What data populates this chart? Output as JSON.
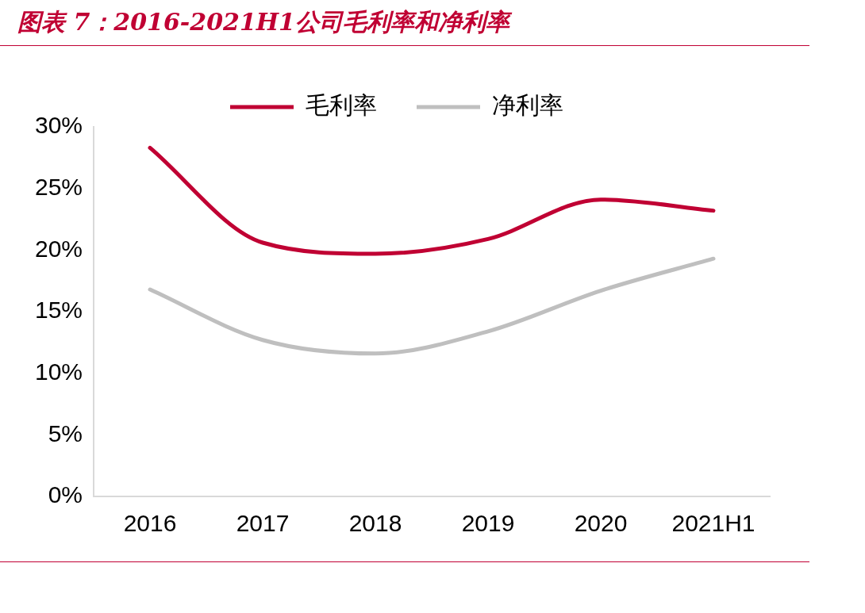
{
  "chart_data": {
    "type": "line",
    "title": "图表 7：2016-2021H1公司毛利率和净利率",
    "categories": [
      "2016",
      "2017",
      "2018",
      "2019",
      "2020",
      "2021H1"
    ],
    "series": [
      {
        "name": "毛利率",
        "color": "#c00033",
        "values": [
          28.3,
          20.6,
          19.7,
          20.9,
          24.1,
          23.2
        ]
      },
      {
        "name": "净利率",
        "color": "#bfbfbf",
        "values": [
          16.8,
          12.7,
          11.6,
          13.4,
          16.7,
          19.3
        ]
      }
    ],
    "ylim": [
      0,
      30
    ],
    "yticks": [
      {
        "value": 0,
        "label": "0%"
      },
      {
        "value": 5,
        "label": "5%"
      },
      {
        "value": 10,
        "label": "10%"
      },
      {
        "value": 15,
        "label": "15%"
      },
      {
        "value": 20,
        "label": "20%"
      },
      {
        "value": 25,
        "label": "25%"
      },
      {
        "value": 30,
        "label": "30%"
      }
    ],
    "grid": false,
    "legend": "top",
    "marker": "none",
    "line_style": "solid"
  }
}
